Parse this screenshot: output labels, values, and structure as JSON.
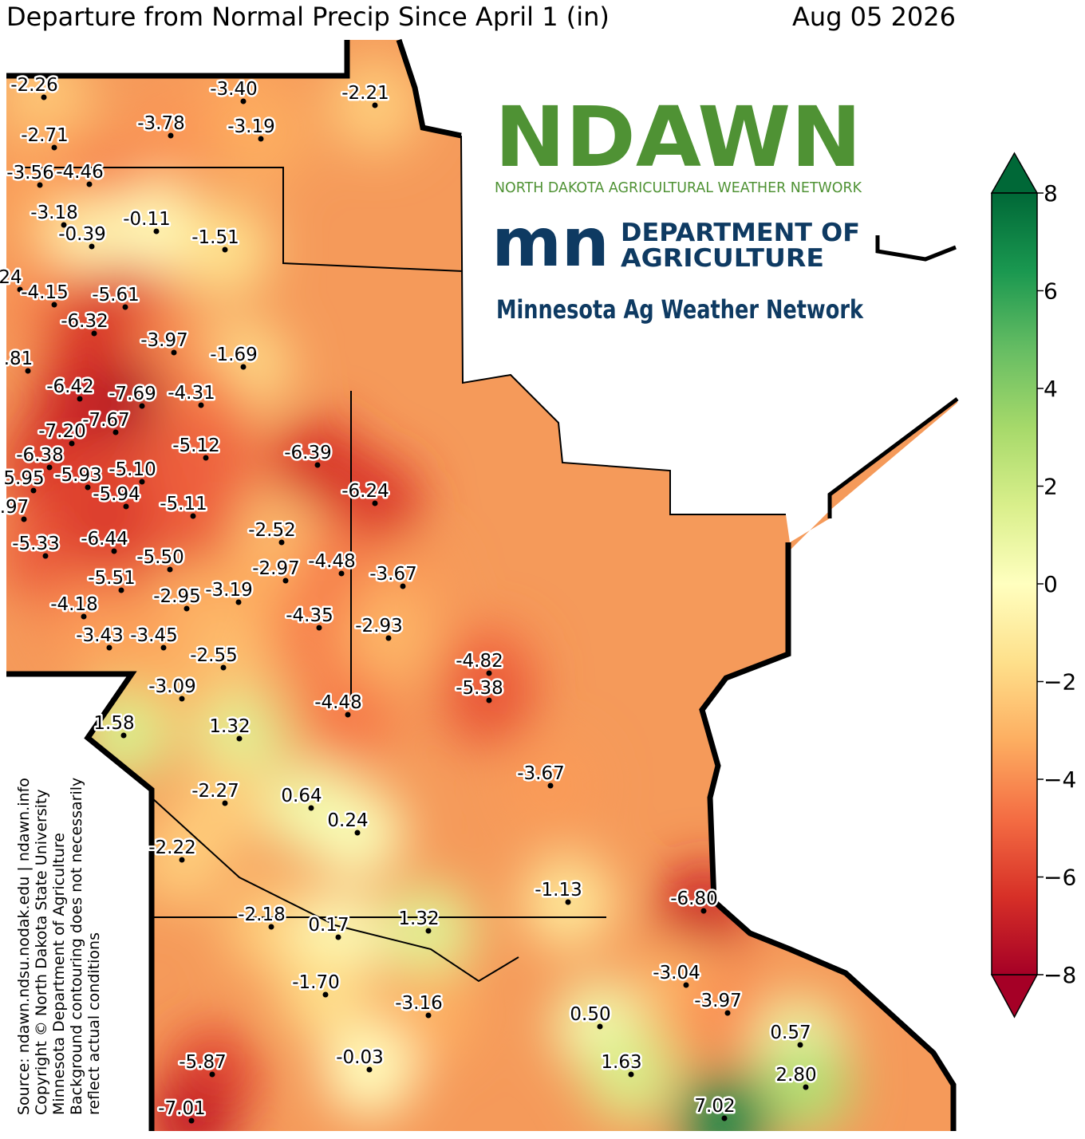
{
  "title": "Departure from Normal Precip Since April 1 (in)",
  "date": "Aug 05 2026",
  "logos": {
    "ndawn": "NDAWN",
    "ndawn_sub": "NORTH DAKOTA AGRICULTURAL WEATHER NETWORK",
    "mn": "mn",
    "mda_1": "DEPARTMENT OF",
    "mda_2": "AGRICULTURE",
    "mawn": "Minnesota Ag Weather Network"
  },
  "source": [
    "Source: ndawn.ndsu.nodak.edu | ndawn.info",
    "Copyright © North Dakota State University",
    "Minnesota Department of Agriculture",
    "Background contouring does not necessarily",
    "reflect actual conditions"
  ],
  "colorbar": {
    "lim": [
      -8,
      8
    ],
    "colors": [
      "#a50026",
      "#d73027",
      "#f46d43",
      "#fdae61",
      "#fee08b",
      "#ffffbf",
      "#d9ef8b",
      "#a6d96a",
      "#66bd63",
      "#1a9850",
      "#006837"
    ],
    "ticks": [
      8,
      6,
      4,
      2,
      0,
      {
        "value": -2,
        "label": "−2"
      },
      {
        "value": -4,
        "label": "−4"
      },
      {
        "value": -6,
        "label": "−6"
      },
      {
        "value": -8,
        "label": "−8"
      }
    ]
  },
  "stations": [
    -2.26,
    {
      "value": -3.4,
      "label": "-3.40"
    },
    -2.21,
    -3.78,
    -3.19,
    -2.71,
    -3.56,
    -4.46,
    -3.18,
    -0.11,
    -0.39,
    -1.51,
    {
      "label": "24"
    },
    -4.15,
    -5.61,
    -6.32,
    -3.97,
    -1.69,
    {
      "label": ".81"
    },
    -6.42,
    -7.69,
    -4.31,
    -7.67,
    {
      "value": -7.2,
      "label": "-7.20"
    },
    -5.12,
    -6.39,
    -6.38,
    {
      "label": "5.95"
    },
    -5.93,
    {
      "value": -5.1,
      "label": "-5.10"
    },
    -6.24,
    -5.94,
    -5.11,
    {
      "label": ".97"
    },
    -2.52,
    -5.33,
    -6.44,
    {
      "value": -5.5,
      "label": "-5.50"
    },
    -2.97,
    -4.48,
    -3.67,
    -5.51,
    -2.95,
    -3.19,
    -4.18,
    -4.35,
    -2.93,
    -3.43,
    -3.45,
    -2.55,
    -4.82,
    -5.38,
    -3.09,
    -4.48,
    1.58,
    1.32,
    -3.67,
    -2.27,
    0.64,
    0.24,
    -2.22,
    -1.13,
    {
      "value": -6.8,
      "label": "-6.80"
    },
    -2.18,
    0.17,
    1.32,
    -3.04,
    {
      "value": -1.7,
      "label": "-1.70"
    },
    -3.97,
    -3.16,
    {
      "value": 0.5,
      "label": "0.50"
    },
    0.57,
    1.63,
    -5.87,
    -0.03,
    {
      "value": 2.8,
      "label": "2.80"
    },
    7.02,
    -7.01
  ]
}
